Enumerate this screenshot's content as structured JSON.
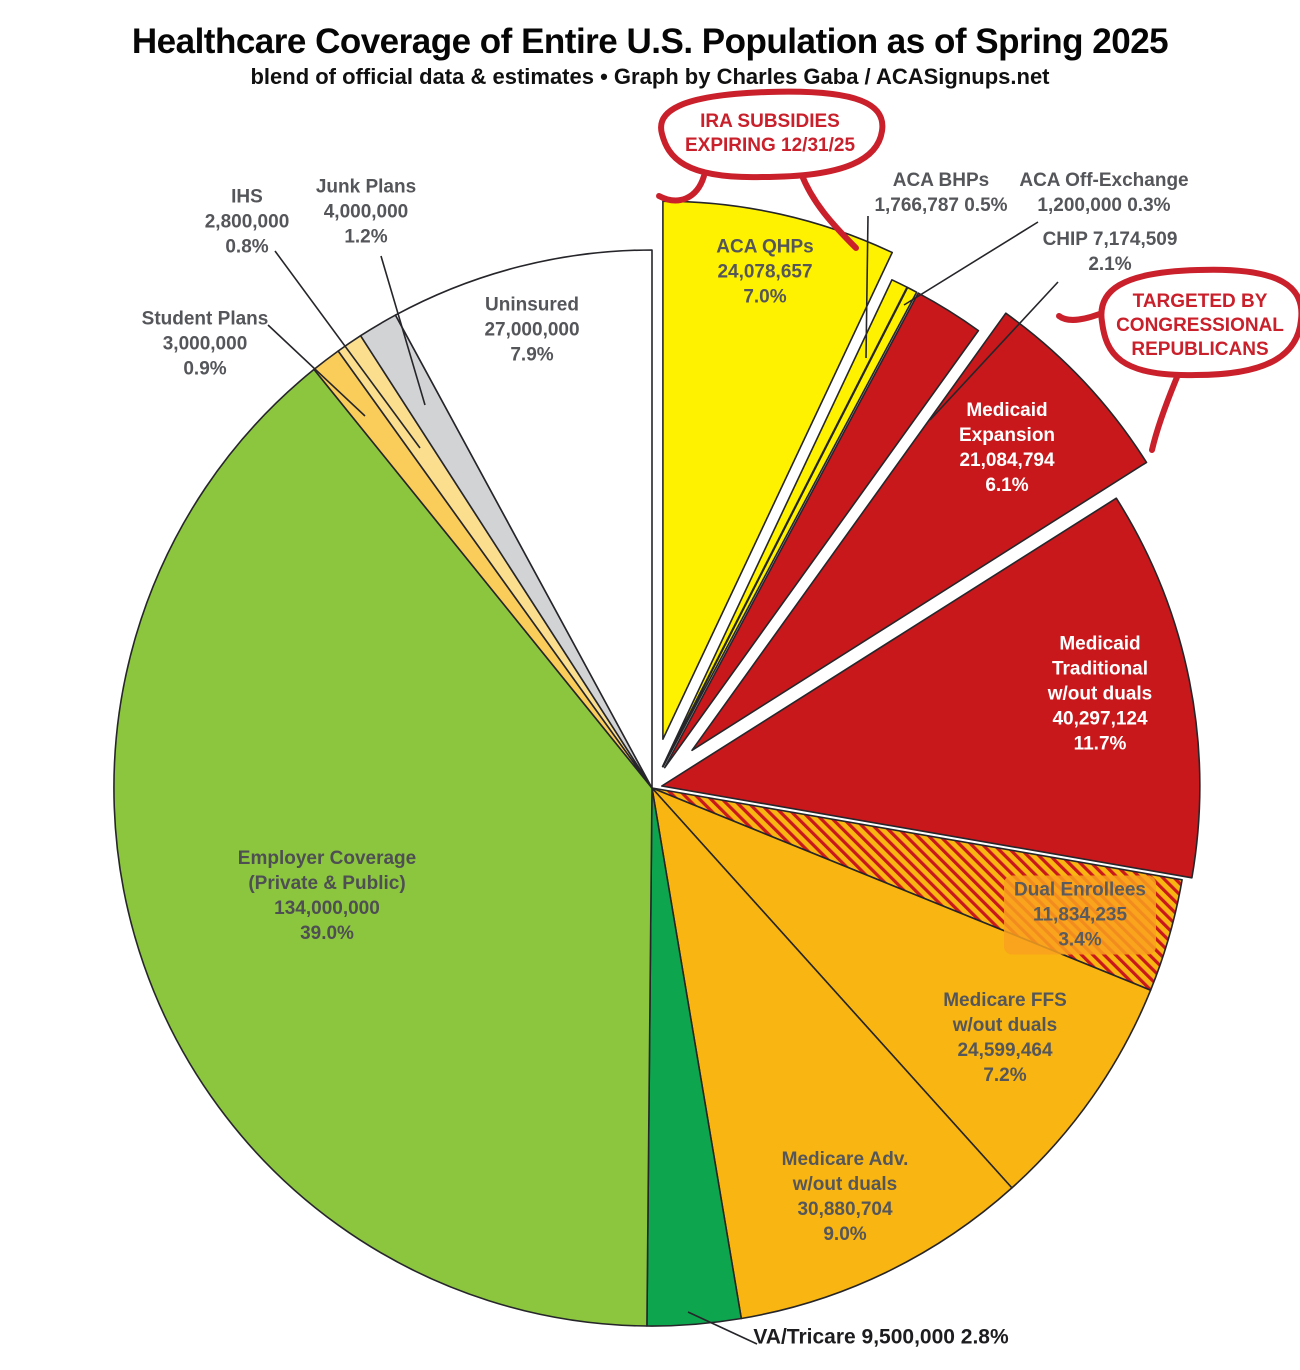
{
  "chart_data": {
    "type": "pie",
    "title": "Healthcare Coverage of Entire U.S. Population as of Spring 2025",
    "subtitle": "blend of official data & estimates • Graph by Charles Gaba / ACASignups.net",
    "legend_position": "none",
    "slices": [
      {
        "id": "aca-qhps",
        "name": "ACA QHPs",
        "value": "24,078,657",
        "pct_label": "7.0%",
        "percent": 7.0,
        "color": "#FFF200",
        "text_color": "#55565A",
        "label_lines": [
          "ACA QHPs",
          "24,078,657",
          "7.0%"
        ]
      },
      {
        "id": "aca-bhps",
        "name": "ACA BHPs",
        "value": "1,766,787",
        "pct_label": "0.5%",
        "percent": 0.5,
        "color": "#FFF200",
        "label_lines": [
          "ACA BHPs",
          "1,766,787 0.5%"
        ]
      },
      {
        "id": "aca-off-exchange",
        "name": "ACA Off-Exchange",
        "value": "1,200,000",
        "pct_label": "0.3%",
        "percent": 0.3,
        "color": "#FFF200",
        "label_lines": [
          "ACA Off-Exchange",
          "1,200,000 0.3%"
        ]
      },
      {
        "id": "chip",
        "name": "CHIP",
        "value": "7,174,509",
        "pct_label": "2.1%",
        "percent": 2.1,
        "color": "#C8181C",
        "label_lines": [
          "CHIP 7,174,509",
          "2.1%"
        ]
      },
      {
        "id": "medicaid-expansion",
        "name": "Medicaid Expansion",
        "value": "21,084,794",
        "pct_label": "6.1%",
        "percent": 6.1,
        "color": "#C8181C",
        "text_color": "#FFFFFF",
        "label_lines": [
          "Medicaid",
          "Expansion",
          "21,084,794",
          "6.1%"
        ]
      },
      {
        "id": "medicaid-traditional",
        "name": "Medicaid Traditional w/out duals",
        "value": "40,297,124",
        "pct_label": "11.7%",
        "percent": 11.7,
        "color": "#C8181C",
        "text_color": "#FFFFFF",
        "label_lines": [
          "Medicaid",
          "Traditional",
          "w/out duals",
          "40,297,124",
          "11.7%"
        ]
      },
      {
        "id": "dual-enrollees",
        "name": "Dual Enrollees",
        "value": "11,834,235",
        "pct_label": "3.4%",
        "percent": 3.4,
        "color": "#F9B511",
        "hatch_color": "#C8181C",
        "text_color": "#5A5B5E",
        "label_lines": [
          "Dual Enrollees",
          "11,834,235",
          "3.4%"
        ]
      },
      {
        "id": "medicare-ffs",
        "name": "Medicare FFS w/out duals",
        "value": "24,599,464",
        "pct_label": "7.2%",
        "percent": 7.2,
        "color": "#F9B511",
        "label_lines": [
          "Medicare FFS",
          "w/out duals",
          "24,599,464",
          "7.2%"
        ]
      },
      {
        "id": "medicare-adv",
        "name": "Medicare Adv. w/out duals",
        "value": "30,880,704",
        "pct_label": "9.0%",
        "percent": 9.0,
        "color": "#F9B511",
        "label_lines": [
          "Medicare Adv.",
          "w/out duals",
          "30,880,704",
          "9.0%"
        ]
      },
      {
        "id": "va-tricare",
        "name": "VA/Tricare",
        "value": "9,500,000",
        "pct_label": "2.8%",
        "percent": 2.8,
        "color": "#0DA64F",
        "text_color": "#1D1D20",
        "label_lines": [
          "VA/Tricare 9,500,000 2.8%"
        ]
      },
      {
        "id": "employer",
        "name": "Employer Coverage (Private & Public)",
        "value": "134,000,000",
        "pct_label": "39.0%",
        "percent": 39.0,
        "color": "#8CC63F",
        "text_color": "#4E4F52",
        "label_lines": [
          "Employer Coverage",
          "(Private & Public)",
          "134,000,000",
          "39.0%"
        ]
      },
      {
        "id": "student-plans",
        "name": "Student Plans",
        "value": "3,000,000",
        "pct_label": "0.9%",
        "percent": 0.9,
        "color": "#FACC5A",
        "label_lines": [
          "Student Plans",
          "3,000,000",
          "0.9%"
        ]
      },
      {
        "id": "ihs",
        "name": "IHS",
        "value": "2,800,000",
        "pct_label": "0.8%",
        "percent": 0.8,
        "color": "#FBDF8F",
        "label_lines": [
          "IHS",
          "2,800,000",
          "0.8%"
        ]
      },
      {
        "id": "junk-plans",
        "name": "Junk Plans",
        "value": "4,000,000",
        "pct_label": "1.2%",
        "percent": 1.2,
        "color": "#D2D3D5",
        "label_lines": [
          "Junk Plans",
          "4,000,000",
          "1.2%"
        ]
      },
      {
        "id": "uninsured",
        "name": "Uninsured",
        "value": "27,000,000",
        "pct_label": "7.9%",
        "percent": 7.9,
        "color": "#FFFFFF",
        "label_lines": [
          "Uninsured",
          "27,000,000",
          "7.9%"
        ]
      }
    ],
    "annotations": [
      {
        "id": "ira",
        "lines": [
          "IRA SUBSIDIES",
          "EXPIRING 12/31/25"
        ],
        "color": "#C9202B"
      },
      {
        "id": "targeted",
        "lines": [
          "TARGETED BY",
          "CONGRESSIONAL",
          "REPUBLICANS"
        ],
        "color": "#C9202B"
      }
    ]
  }
}
